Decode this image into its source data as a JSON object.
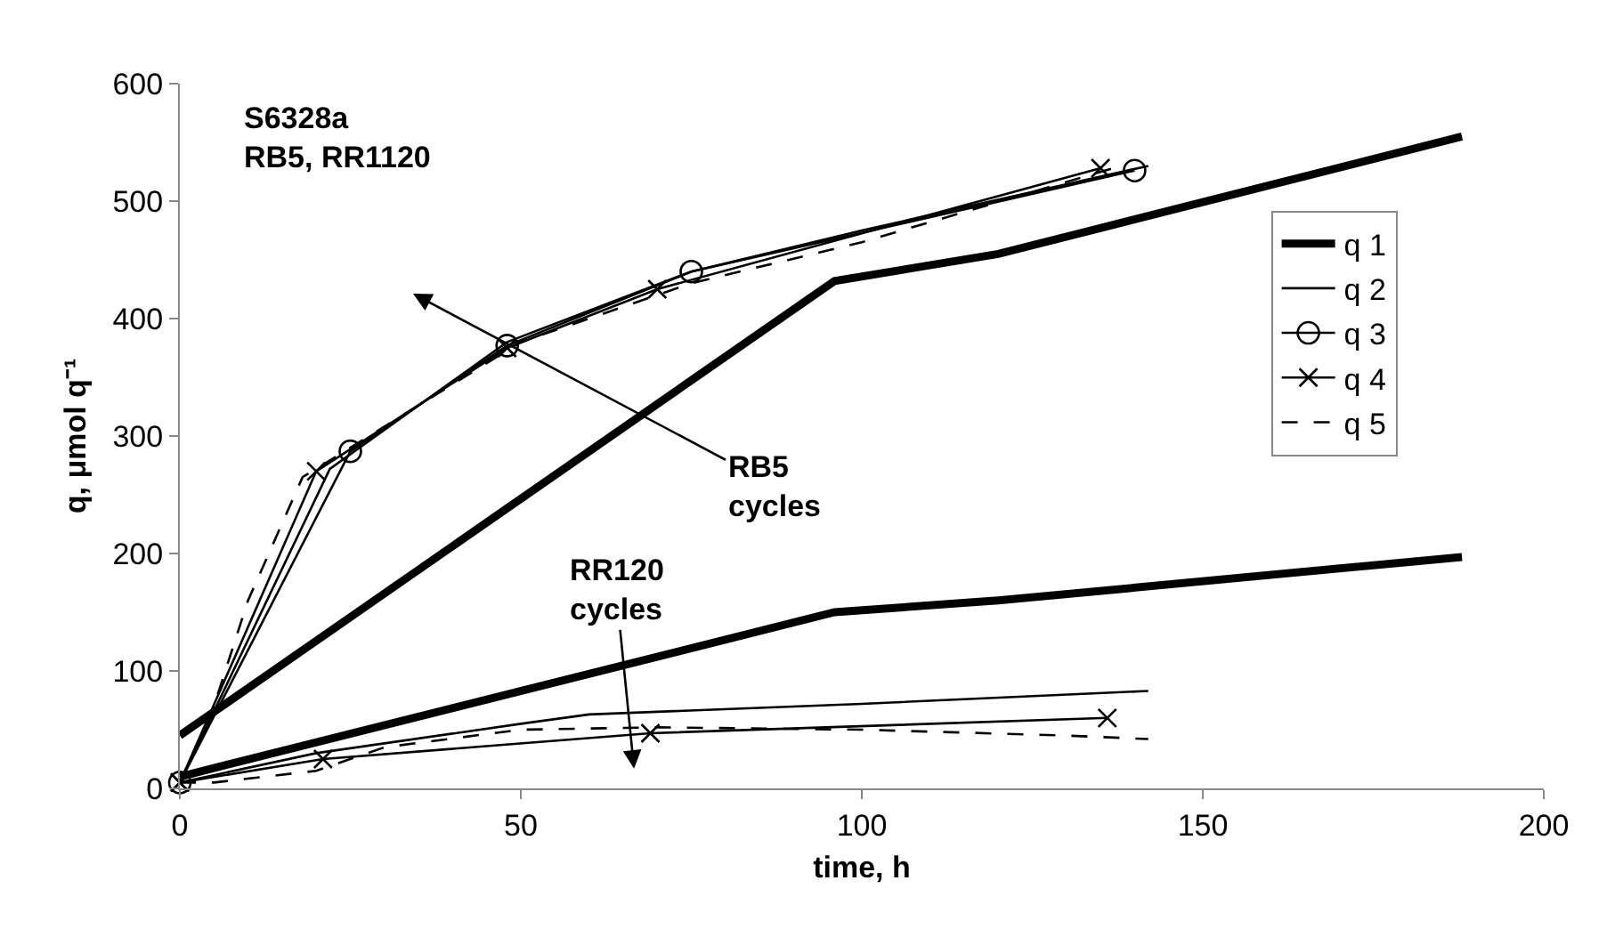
{
  "chart_data": {
    "type": "line",
    "xlabel": "time, h",
    "ylabel": "q, μmol q⁻¹",
    "xlim": [
      0,
      200
    ],
    "xticks": [
      0,
      50,
      100,
      150,
      200
    ],
    "ylim": [
      0,
      600
    ],
    "yticks": [
      0,
      100,
      200,
      300,
      400,
      500,
      600
    ],
    "grid": false,
    "legend": "top right",
    "annotations": [
      "S6328a\nRB5, RR1120",
      "RB5\ncycles",
      "RR120\ncycles"
    ],
    "series": [
      {
        "name": "q 1",
        "color": "#000000",
        "marker": "none",
        "line_style": "solid",
        "x": [
          0,
          96,
          120,
          188
        ],
        "values": [
          45,
          432,
          455,
          555
        ]
      },
      {
        "color": "#000000",
        "marker": "none",
        "line_style": "solid",
        "x": [
          0,
          96,
          120,
          188
        ],
        "values": [
          10,
          150,
          160,
          197
        ]
      },
      {
        "name": "q 2",
        "color": "#000000",
        "marker": "none",
        "line_style": "solid",
        "x": [
          0,
          22,
          48,
          75,
          100,
          142
        ],
        "values": [
          5,
          272,
          380,
          440,
          475,
          530
        ]
      },
      {
        "color": "#000000",
        "marker": "none",
        "line_style": "solid",
        "x": [
          0,
          20,
          50,
          60,
          100,
          142
        ],
        "values": [
          5,
          30,
          55,
          63,
          72,
          83
        ]
      },
      {
        "name": "q 3",
        "color": "#000000",
        "marker": "circle",
        "line_style": "solid",
        "x": [
          0,
          25,
          48,
          75,
          140
        ],
        "values": [
          5,
          287,
          377,
          440,
          526
        ]
      },
      {
        "name": "q 4",
        "color": "#000000",
        "marker": "cross",
        "line_style": "solid",
        "x": [
          0,
          20,
          48,
          70,
          135
        ],
        "values": [
          5,
          270,
          375,
          425,
          528
        ]
      },
      {
        "color": "#000000",
        "marker": "cross",
        "line_style": "solid",
        "x": [
          0,
          21,
          69,
          136
        ],
        "values": [
          5,
          25,
          47,
          60
        ]
      },
      {
        "name": "q 5",
        "color": "#000000",
        "marker": "none",
        "line_style": "dashed",
        "x": [
          0,
          5,
          10,
          18,
          25,
          50,
          75,
          100,
          138
        ],
        "values": [
          5,
          70,
          160,
          265,
          290,
          380,
          430,
          465,
          530
        ]
      },
      {
        "color": "#000000",
        "marker": "none",
        "line_style": "dashed",
        "x": [
          0,
          5,
          20,
          30,
          50,
          70,
          100,
          130,
          142
        ],
        "values": [
          5,
          5,
          15,
          35,
          50,
          52,
          50,
          45,
          42
        ]
      }
    ]
  }
}
